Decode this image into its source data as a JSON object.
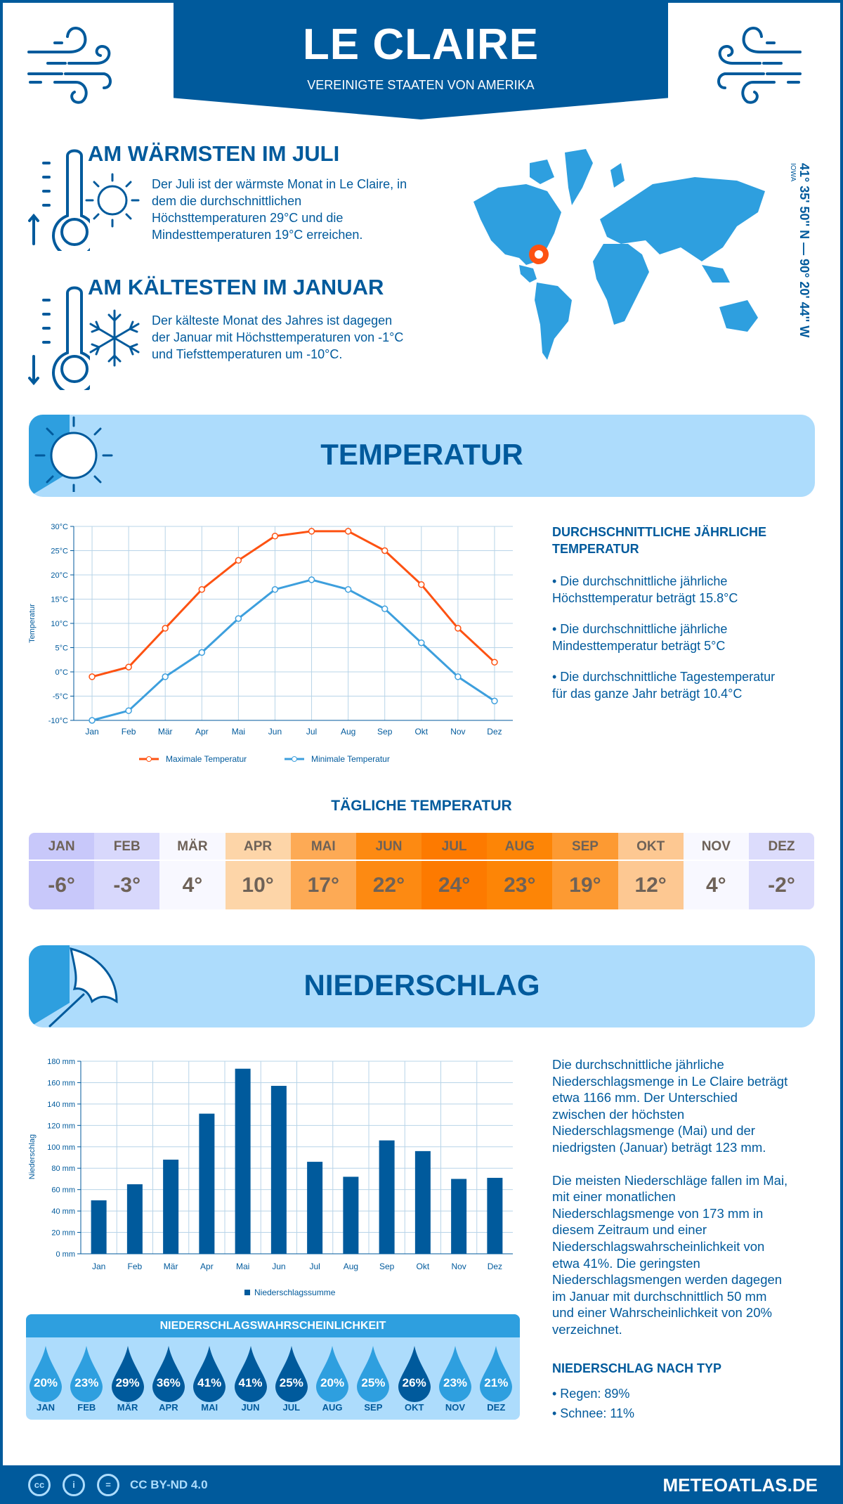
{
  "header": {
    "title": "LE CLAIRE",
    "subtitle": "VEREINIGTE STAATEN VON AMERIKA"
  },
  "warmest": {
    "heading": "AM WÄRMSTEN IM JULI",
    "lines": [
      "Der Juli ist der wärmste Monat in Le Claire, in",
      "dem die durchschnittlichen",
      "Höchsttemperaturen 29°C und die",
      "Mindesttemperaturen 19°C erreichen."
    ]
  },
  "coldest": {
    "heading": "AM KÄLTESTEN IM JANUAR",
    "lines": [
      "Der kälteste Monat des Jahres ist dagegen",
      "der Januar mit Höchsttemperaturen von -1°C",
      "und Tiefsttemperaturen um -10°C."
    ]
  },
  "location": {
    "coords": "41° 35' 50'' N — 90° 20' 44'' W",
    "region": "IOWA"
  },
  "temperature_section": {
    "title": "TEMPERATUR",
    "annual_heading": [
      "DURCHSCHNITTLICHE JÄHRLICHE",
      "TEMPERATUR"
    ],
    "bullets": [
      [
        "• Die durchschnittliche jährliche",
        "Höchsttemperatur beträgt 15.8°C"
      ],
      [
        "• Die durchschnittliche jährliche",
        "Mindesttemperatur beträgt 5°C"
      ],
      [
        "• Die durchschnittliche Tagestemperatur",
        "für das ganze Jahr beträgt 10.4°C"
      ]
    ],
    "daily_heading": "TÄGLICHE TEMPERATUR",
    "daily": [
      {
        "month": "JAN",
        "value": "-6°",
        "color": "#c8c8fa"
      },
      {
        "month": "FEB",
        "value": "-3°",
        "color": "#d8d8fc"
      },
      {
        "month": "MÄR",
        "value": "4°",
        "color": "#f8f8ff"
      },
      {
        "month": "APR",
        "value": "10°",
        "color": "#fdd5a8"
      },
      {
        "month": "MAI",
        "value": "17°",
        "color": "#fdaa55"
      },
      {
        "month": "JUN",
        "value": "22°",
        "color": "#fd8a12"
      },
      {
        "month": "JUL",
        "value": "24°",
        "color": "#fd7a00"
      },
      {
        "month": "AUG",
        "value": "23°",
        "color": "#fd8506"
      },
      {
        "month": "SEP",
        "value": "19°",
        "color": "#fd9a32"
      },
      {
        "month": "OKT",
        "value": "12°",
        "color": "#fdc892"
      },
      {
        "month": "NOV",
        "value": "4°",
        "color": "#f8f8ff"
      },
      {
        "month": "DEZ",
        "value": "-2°",
        "color": "#dcdcfc"
      }
    ]
  },
  "precipitation_section": {
    "title": "NIEDERSCHLAG",
    "paragraph1": [
      "Die durchschnittliche jährliche",
      "Niederschlagsmenge in Le Claire beträgt",
      "etwa 1166 mm. Der Unterschied",
      "zwischen der höchsten",
      "Niederschlagsmenge (Mai) und der",
      "niedrigsten (Januar) beträgt 123 mm."
    ],
    "paragraph2": [
      "Die meisten Niederschläge fallen im Mai,",
      "mit einer monatlichen",
      "Niederschlagsmenge von 173 mm in",
      "diesem Zeitraum und einer",
      "Niederschlagswahrscheinlichkeit von",
      "etwa 41%. Die geringsten",
      "Niederschlagsmengen werden dagegen",
      "im Januar mit durchschnittlich 50 mm",
      "und einer Wahrscheinlichkeit von 20%",
      "verzeichnet."
    ],
    "type_heading": "NIEDERSCHLAG NACH TYP",
    "types": [
      "• Regen: 89%",
      "• Schnee: 11%"
    ],
    "probability_heading": "NIEDERSCHLAGSWAHRSCHEINLICHKEIT",
    "probability": [
      {
        "month": "JAN",
        "value": "20%",
        "shade": "light"
      },
      {
        "month": "FEB",
        "value": "23%",
        "shade": "light"
      },
      {
        "month": "MÄR",
        "value": "29%",
        "shade": "dark"
      },
      {
        "month": "APR",
        "value": "36%",
        "shade": "dark"
      },
      {
        "month": "MAI",
        "value": "41%",
        "shade": "dark"
      },
      {
        "month": "JUN",
        "value": "41%",
        "shade": "dark"
      },
      {
        "month": "JUL",
        "value": "25%",
        "shade": "dark"
      },
      {
        "month": "AUG",
        "value": "20%",
        "shade": "light"
      },
      {
        "month": "SEP",
        "value": "25%",
        "shade": "light"
      },
      {
        "month": "OKT",
        "value": "26%",
        "shade": "dark"
      },
      {
        "month": "NOV",
        "value": "23%",
        "shade": "light"
      },
      {
        "month": "DEZ",
        "value": "21%",
        "shade": "light"
      }
    ]
  },
  "colors": {
    "brand": "#005a9c",
    "light_blue": "#2e9fdf",
    "pale_blue": "#addcfc",
    "max_line": "#fd5212",
    "min_line": "#3d9fdd",
    "marker": "#fd5212"
  },
  "chart_data": [
    {
      "type": "line",
      "categories": [
        "Jan",
        "Feb",
        "Mär",
        "Apr",
        "Mai",
        "Jun",
        "Jul",
        "Aug",
        "Sep",
        "Okt",
        "Nov",
        "Dez"
      ],
      "series": [
        {
          "name": "Maximale Temperatur",
          "values": [
            -1,
            1,
            9,
            17,
            23,
            28,
            29,
            29,
            25,
            18,
            9,
            2
          ],
          "color": "#fd5212"
        },
        {
          "name": "Minimale Temperatur",
          "values": [
            -10,
            -8,
            -1,
            4,
            11,
            17,
            19,
            17,
            13,
            6,
            -1,
            -6
          ],
          "color": "#3d9fdd"
        }
      ],
      "ylabel": "Temperatur",
      "ylim": [
        -10,
        30
      ],
      "yticks": [
        "-10°C",
        "-5°C",
        "0°C",
        "5°C",
        "10°C",
        "15°C",
        "20°C",
        "25°C",
        "30°C"
      ],
      "grid": true,
      "legend": "bottom"
    },
    {
      "type": "bar",
      "categories": [
        "Jan",
        "Feb",
        "Mär",
        "Apr",
        "Mai",
        "Jun",
        "Jul",
        "Aug",
        "Sep",
        "Okt",
        "Nov",
        "Dez"
      ],
      "series": [
        {
          "name": "Niederschlagssumme",
          "values": [
            50,
            65,
            88,
            131,
            173,
            157,
            86,
            72,
            106,
            96,
            70,
            71
          ],
          "color": "#005a9c"
        }
      ],
      "ylabel": "Niederschlag",
      "ylim": [
        0,
        180
      ],
      "yticks": [
        "0 mm",
        "20 mm",
        "40 mm",
        "60 mm",
        "80 mm",
        "100 mm",
        "120 mm",
        "140 mm",
        "160 mm",
        "180 mm"
      ],
      "grid": true,
      "legend": "bottom"
    }
  ],
  "footer": {
    "license": "CC BY-ND 4.0",
    "brand": "METEOATLAS.DE",
    "cc_icon": "cc",
    "by_icon": "i",
    "nd_icon": "="
  }
}
